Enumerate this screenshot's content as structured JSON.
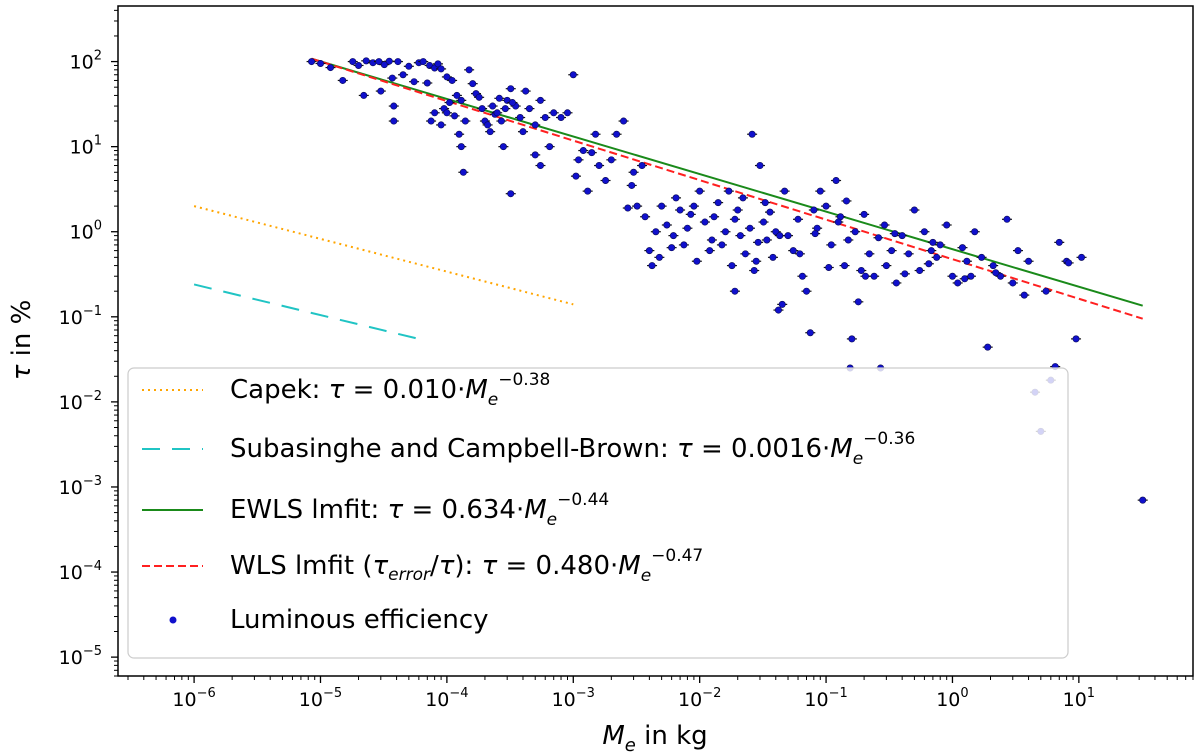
{
  "chart_data": {
    "type": "scatter",
    "xscale": "log",
    "yscale": "log",
    "xlim": [
      2.5e-07,
      80
    ],
    "ylim": [
      6e-06,
      450
    ],
    "x_ticks": [
      {
        "value": 1e-06,
        "base": "10",
        "exp": "−6"
      },
      {
        "value": 1e-05,
        "base": "10",
        "exp": "−5"
      },
      {
        "value": 0.0001,
        "base": "10",
        "exp": "−4"
      },
      {
        "value": 0.001,
        "base": "10",
        "exp": "−3"
      },
      {
        "value": 0.01,
        "base": "10",
        "exp": "−2"
      },
      {
        "value": 0.1,
        "base": "10",
        "exp": "−1"
      },
      {
        "value": 1,
        "base": "10",
        "exp": "0"
      },
      {
        "value": 10,
        "base": "10",
        "exp": "1"
      }
    ],
    "y_ticks": [
      {
        "value": 1e-05,
        "base": "10",
        "exp": "−5"
      },
      {
        "value": 0.0001,
        "base": "10",
        "exp": "−4"
      },
      {
        "value": 0.001,
        "base": "10",
        "exp": "−3"
      },
      {
        "value": 0.01,
        "base": "10",
        "exp": "−2"
      },
      {
        "value": 0.1,
        "base": "10",
        "exp": "−1"
      },
      {
        "value": 1,
        "base": "10",
        "exp": "0"
      },
      {
        "value": 10,
        "base": "10",
        "exp": "1"
      },
      {
        "value": 100,
        "base": "10",
        "exp": "2"
      }
    ],
    "xlabel": {
      "var": "M",
      "sub": "e",
      "rest": " in kg"
    },
    "ylabel": {
      "var": "τ",
      "rest": " in %"
    },
    "fits": [
      {
        "key": "capek",
        "color": "#ffa500",
        "dash": "2,4",
        "x_range": [
          1e-06,
          0.001
        ],
        "endpoints": [
          2.0,
          0.14
        ]
      },
      {
        "key": "subasinghe",
        "color": "#20c4c4",
        "dash": "18,12",
        "x_range": [
          1e-06,
          7e-05
        ],
        "endpoints": [
          0.24,
          0.052
        ]
      },
      {
        "key": "ewls",
        "color": "#1a8a1a",
        "dash": "",
        "x_range": [
          8.5e-06,
          32
        ],
        "endpoints": [
          108,
          0.135
        ]
      },
      {
        "key": "wls",
        "color": "#ff2020",
        "dash": "8,4",
        "x_range": [
          8.5e-06,
          32
        ],
        "endpoints": [
          108,
          0.095
        ]
      }
    ],
    "legend": {
      "position": "lower-left",
      "entries": [
        {
          "key": "capek",
          "parts": [
            "Capek: ",
            "τ",
            " = 0.010·",
            "M",
            "e",
            "−0.38"
          ]
        },
        {
          "key": "subasinghe",
          "parts": [
            "Subasinghe and Campbell-Brown: ",
            "τ",
            " = 0.0016·",
            "M",
            "e",
            "−0.36"
          ]
        },
        {
          "key": "ewls",
          "parts": [
            "EWLS lmfit: ",
            "τ",
            " = 0.634·",
            "M",
            "e",
            "−0.44"
          ]
        },
        {
          "key": "wls",
          "parts": [
            "WLS lmfit (",
            "τ",
            "error",
            "/",
            "τ",
            "): ",
            "τ",
            " = 0.480·",
            "M",
            "e",
            "−0.47"
          ]
        },
        {
          "key": "points",
          "parts": [
            "Luminous efficiency"
          ]
        }
      ]
    },
    "series": [
      {
        "key": "points",
        "color": "#1010cc",
        "points": [
          [
            8.5e-06,
            100
          ],
          [
            1e-05,
            95
          ],
          [
            1.2e-05,
            85
          ],
          [
            1.5e-05,
            60
          ],
          [
            1.8e-05,
            100
          ],
          [
            2e-05,
            90
          ],
          [
            2.3e-05,
            102
          ],
          [
            2.6e-05,
            97
          ],
          [
            2.9e-05,
            100
          ],
          [
            3.2e-05,
            92
          ],
          [
            3.5e-05,
            101
          ],
          [
            3e-05,
            45
          ],
          [
            2.2e-05,
            40
          ],
          [
            3.7e-05,
            64
          ],
          [
            3.8e-05,
            30
          ],
          [
            3.8e-05,
            20
          ],
          [
            4.1e-05,
            100
          ],
          [
            4.5e-05,
            70
          ],
          [
            5e-05,
            88
          ],
          [
            5.5e-05,
            58
          ],
          [
            6e-05,
            97
          ],
          [
            6.5e-05,
            100
          ],
          [
            7e-05,
            56
          ],
          [
            7.3e-05,
            90
          ],
          [
            8e-05,
            84
          ],
          [
            8.5e-05,
            94
          ],
          [
            9e-05,
            82
          ],
          [
            0.0001,
            66
          ],
          [
            0.00011,
            60
          ],
          [
            0.00012,
            40
          ],
          [
            0.00013,
            35
          ],
          [
            8e-05,
            25
          ],
          [
            7.5e-05,
            20
          ],
          [
            9e-05,
            18
          ],
          [
            9.5e-05,
            28
          ],
          [
            0.000105,
            33
          ],
          [
            0.000115,
            23
          ],
          [
            0.000125,
            14
          ],
          [
            0.00013,
            10
          ],
          [
            0.000135,
            5.0
          ],
          [
            0.00015,
            80
          ],
          [
            0.00016,
            55
          ],
          [
            0.00017,
            42
          ],
          [
            0.00018,
            38
          ],
          [
            0.00019,
            28
          ],
          [
            0.0002,
            20
          ],
          [
            0.00021,
            18
          ],
          [
            0.00022,
            15
          ],
          [
            0.00024,
            24
          ],
          [
            0.00025,
            25
          ],
          [
            0.00027,
            20
          ],
          [
            0.00028,
            10
          ],
          [
            0.00029,
            28
          ],
          [
            0.0003,
            35
          ],
          [
            0.00032,
            48
          ],
          [
            0.00035,
            30
          ],
          [
            0.00038,
            22
          ],
          [
            0.00042,
            45
          ],
          [
            0.00045,
            28
          ],
          [
            0.0005,
            18
          ],
          [
            0.00055,
            35
          ],
          [
            0.0006,
            22
          ],
          [
            0.0007,
            25
          ],
          [
            0.0008,
            22
          ],
          [
            0.0009,
            25
          ],
          [
            0.001,
            70
          ],
          [
            0.00032,
            2.8
          ],
          [
            0.0005,
            8.0
          ],
          [
            0.00065,
            10
          ],
          [
            0.00055,
            6.0
          ],
          [
            0.0011,
            7.0
          ],
          [
            0.0012,
            9.0
          ],
          [
            0.0013,
            3.0
          ],
          [
            0.0015,
            14
          ],
          [
            0.0016,
            6.0
          ],
          [
            0.0018,
            4.0
          ],
          [
            0.002,
            7.0
          ],
          [
            0.0022,
            14
          ],
          [
            0.0025,
            20
          ],
          [
            0.0027,
            1.9
          ],
          [
            0.0029,
            3.5
          ],
          [
            0.003,
            5.0
          ],
          [
            0.0032,
            2.0
          ],
          [
            0.0035,
            6.0
          ],
          [
            0.0037,
            1.5
          ],
          [
            0.004,
            0.6
          ],
          [
            0.0042,
            0.4
          ],
          [
            0.0045,
            1.0
          ],
          [
            0.0048,
            0.5
          ],
          [
            0.005,
            2.0
          ],
          [
            0.0055,
            1.2
          ],
          [
            0.006,
            0.65
          ],
          [
            0.0065,
            2.5
          ],
          [
            0.007,
            1.8
          ],
          [
            0.0075,
            0.7
          ],
          [
            0.008,
            1.1
          ],
          [
            0.0085,
            1.6
          ],
          [
            0.009,
            2.0
          ],
          [
            0.0095,
            0.45
          ],
          [
            0.01,
            3.0
          ],
          [
            0.011,
            1.3
          ],
          [
            0.012,
            0.6
          ],
          [
            0.013,
            1.5
          ],
          [
            0.014,
            2.2
          ],
          [
            0.015,
            0.7
          ],
          [
            0.016,
            1.0
          ],
          [
            0.017,
            3.0
          ],
          [
            0.018,
            0.4
          ],
          [
            0.019,
            0.2
          ],
          [
            0.02,
            1.8
          ],
          [
            0.021,
            0.9
          ],
          [
            0.022,
            2.5
          ],
          [
            0.023,
            0.55
          ],
          [
            0.025,
            1.1
          ],
          [
            0.026,
            14
          ],
          [
            0.027,
            0.35
          ],
          [
            0.029,
            0.75
          ],
          [
            0.03,
            6.0
          ],
          [
            0.032,
            1.3
          ],
          [
            0.034,
            0.8
          ],
          [
            0.036,
            1.7
          ],
          [
            0.038,
            0.5
          ],
          [
            0.04,
            1.0
          ],
          [
            0.042,
            0.12
          ],
          [
            0.045,
            0.14
          ],
          [
            0.047,
            3.0
          ],
          [
            0.05,
            0.9
          ],
          [
            0.055,
            0.6
          ],
          [
            0.06,
            1.4
          ],
          [
            0.065,
            0.3
          ],
          [
            0.07,
            0.2
          ],
          [
            0.075,
            0.065
          ],
          [
            0.08,
            1.8
          ],
          [
            0.085,
            1.1
          ],
          [
            0.09,
            3.0
          ],
          [
            0.1,
            2.0
          ],
          [
            0.11,
            0.7
          ],
          [
            0.12,
            4.0
          ],
          [
            0.13,
            1.5
          ],
          [
            0.14,
            0.4
          ],
          [
            0.15,
            0.8
          ],
          [
            0.155,
            0.025
          ],
          [
            0.16,
            0.055
          ],
          [
            0.17,
            1.0
          ],
          [
            0.18,
            0.15
          ],
          [
            0.19,
            0.35
          ],
          [
            0.2,
            1.6
          ],
          [
            0.22,
            0.55
          ],
          [
            0.24,
            0.3
          ],
          [
            0.26,
            0.85
          ],
          [
            0.27,
            0.025
          ],
          [
            0.29,
            1.2
          ],
          [
            0.3,
            0.4
          ],
          [
            0.33,
            0.6
          ],
          [
            0.36,
            0.25
          ],
          [
            0.4,
            0.9
          ],
          [
            0.45,
            0.55
          ],
          [
            0.5,
            1.8
          ],
          [
            0.55,
            0.35
          ],
          [
            0.6,
            1.0
          ],
          [
            0.65,
            0.42
          ],
          [
            0.7,
            0.75
          ],
          [
            0.75,
            0.5
          ],
          [
            0.8,
            0.7
          ],
          [
            0.9,
            1.2
          ],
          [
            1.0,
            0.3
          ],
          [
            1.1,
            0.25
          ],
          [
            1.2,
            0.65
          ],
          [
            1.3,
            0.45
          ],
          [
            1.4,
            0.3
          ],
          [
            1.5,
            1.0
          ],
          [
            1.7,
            0.5
          ],
          [
            1.9,
            0.044
          ],
          [
            2.1,
            0.4
          ],
          [
            2.4,
            0.3
          ],
          [
            2.7,
            1.4
          ],
          [
            3.0,
            0.25
          ],
          [
            3.3,
            0.6
          ],
          [
            3.7,
            0.18
          ],
          [
            4.0,
            0.45
          ],
          [
            4.5,
            0.013
          ],
          [
            5.0,
            0.0045
          ],
          [
            5.5,
            0.2
          ],
          [
            6.0,
            0.018
          ],
          [
            6.5,
            0.026
          ],
          [
            7.0,
            0.75
          ],
          [
            8.0,
            0.45
          ],
          [
            0.0001,
            25
          ],
          [
            0.00014,
            20
          ],
          [
            0.00023,
            30
          ],
          [
            0.00026,
            37
          ],
          [
            0.00033,
            33
          ],
          [
            0.0004,
            15
          ],
          [
            0.00105,
            4.5
          ],
          [
            0.0014,
            8.5
          ],
          [
            0.0062,
            0.9
          ],
          [
            0.0125,
            0.8
          ],
          [
            0.019,
            1.4
          ],
          [
            0.028,
            0.45
          ],
          [
            0.033,
            2.2
          ],
          [
            0.043,
            0.9
          ],
          [
            0.062,
            0.55
          ],
          [
            0.082,
            0.95
          ],
          [
            0.105,
            0.38
          ],
          [
            0.125,
            1.3
          ],
          [
            0.145,
            2.3
          ],
          [
            0.205,
            0.3
          ],
          [
            0.35,
            0.95
          ],
          [
            0.42,
            0.32
          ],
          [
            0.68,
            0.6
          ],
          [
            1.25,
            0.28
          ],
          [
            2.2,
            0.33
          ],
          [
            8.3,
            0.43
          ],
          [
            9.5,
            0.055
          ],
          [
            10.5,
            0.5
          ],
          [
            32,
            0.0007
          ]
        ]
      }
    ]
  }
}
